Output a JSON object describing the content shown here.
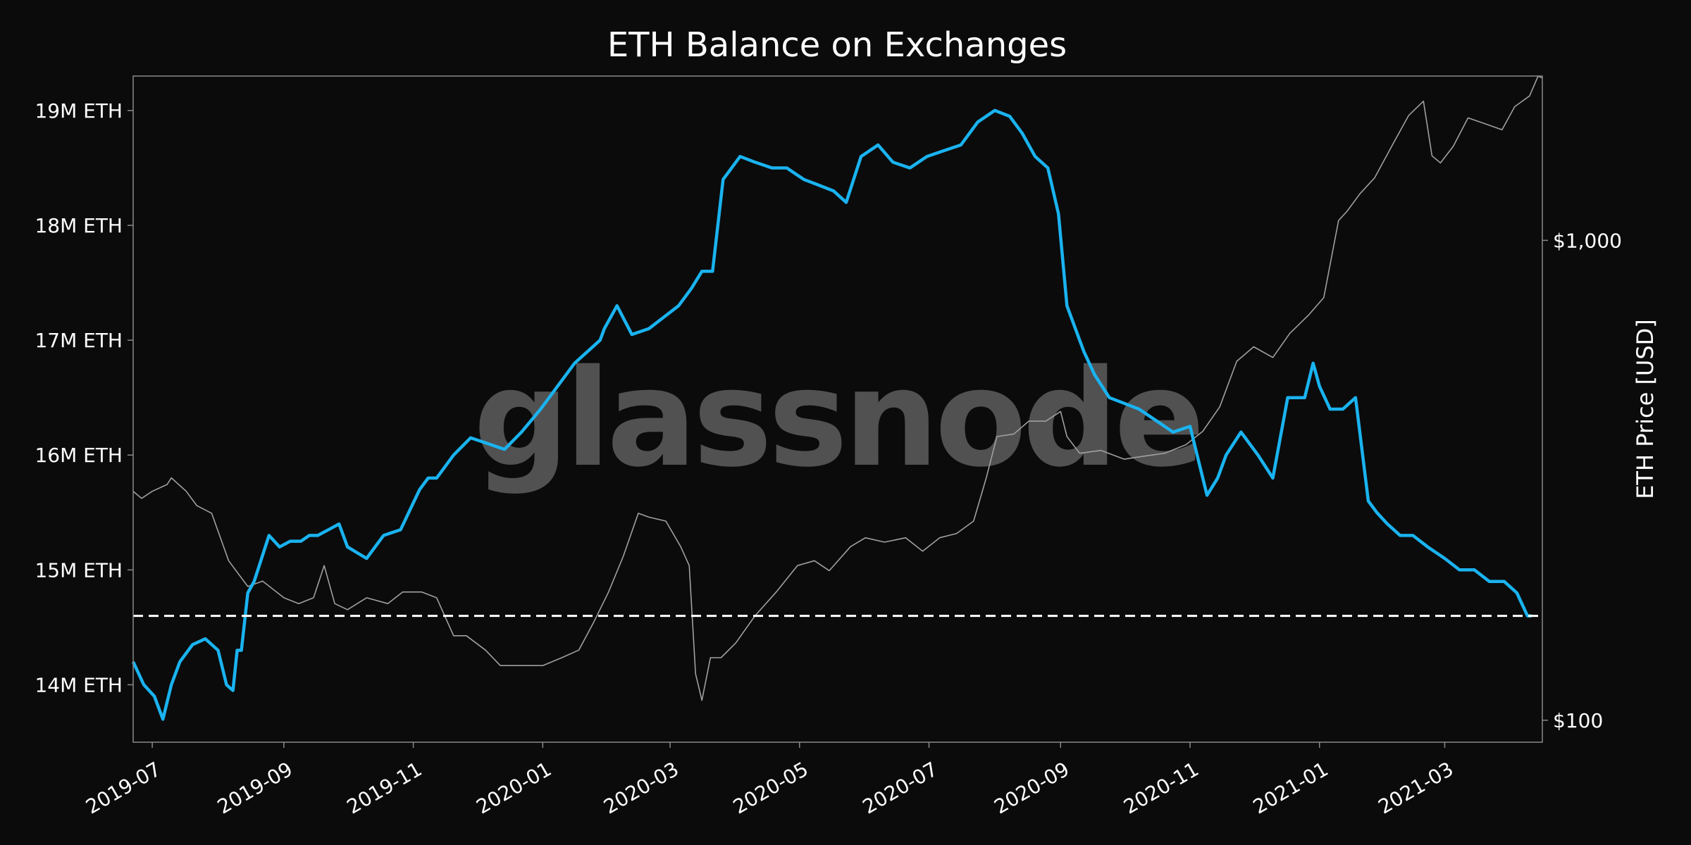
{
  "chart_data": {
    "type": "line",
    "title": "ETH Balance on Exchanges",
    "watermark": "glassnode",
    "ylabel_right": "ETH Price [USD]",
    "x_range": [
      "2019-06-22",
      "2021-04-16"
    ],
    "x_ticks": [
      "2019-07",
      "2019-09",
      "2019-11",
      "2020-01",
      "2020-03",
      "2020-05",
      "2020-07",
      "2020-09",
      "2020-11",
      "2021-01",
      "2021-03"
    ],
    "y_left": {
      "range": [
        13.5,
        19.3
      ],
      "unit": "M ETH",
      "ticks": [
        14,
        15,
        16,
        17,
        18,
        19
      ],
      "tick_labels": [
        "14M ETH",
        "15M ETH",
        "16M ETH",
        "17M ETH",
        "18M ETH",
        "19M ETH"
      ]
    },
    "y_right": {
      "scale": "log",
      "range": [
        90,
        2200
      ],
      "unit": "USD",
      "ticks": [
        100,
        1000
      ],
      "tick_labels": [
        "$100",
        "$1,000"
      ]
    },
    "reference_line": {
      "value": 14.6,
      "style": "dashed",
      "color": "#ffffff"
    },
    "grid": false,
    "series": [
      {
        "axis": "left",
        "color": "#1ab3f0",
        "x": [
          "2019-06-22",
          "2019-06-27",
          "2019-07-02",
          "2019-07-06",
          "2019-07-10",
          "2019-07-14",
          "2019-07-20",
          "2019-07-26",
          "2019-08-01",
          "2019-08-05",
          "2019-08-08",
          "2019-08-10",
          "2019-08-12",
          "2019-08-15",
          "2019-08-18",
          "2019-08-25",
          "2019-08-30",
          "2019-09-04",
          "2019-09-09",
          "2019-09-13",
          "2019-09-17",
          "2019-09-22",
          "2019-09-27",
          "2019-10-01",
          "2019-10-10",
          "2019-10-18",
          "2019-10-26",
          "2019-11-04",
          "2019-11-08",
          "2019-11-12",
          "2019-11-20",
          "2019-11-28",
          "2019-12-06",
          "2019-12-14",
          "2019-12-22",
          "2019-12-31",
          "2020-01-08",
          "2020-01-16",
          "2020-01-22",
          "2020-01-28",
          "2020-01-30",
          "2020-02-05",
          "2020-02-12",
          "2020-02-20",
          "2020-02-27",
          "2020-03-05",
          "2020-03-11",
          "2020-03-16",
          "2020-03-21",
          "2020-03-26",
          "2020-04-03",
          "2020-04-10",
          "2020-04-18",
          "2020-04-25",
          "2020-05-03",
          "2020-05-10",
          "2020-05-17",
          "2020-05-23",
          "2020-05-30",
          "2020-06-07",
          "2020-06-14",
          "2020-06-22",
          "2020-06-30",
          "2020-07-08",
          "2020-07-16",
          "2020-07-24",
          "2020-08-01",
          "2020-08-08",
          "2020-08-14",
          "2020-08-20",
          "2020-08-26",
          "2020-08-31",
          "2020-09-04",
          "2020-09-08",
          "2020-09-12",
          "2020-09-17",
          "2020-09-24",
          "2020-10-01",
          "2020-10-08",
          "2020-10-16",
          "2020-10-24",
          "2020-11-01",
          "2020-11-09",
          "2020-11-14",
          "2020-11-18",
          "2020-11-25",
          "2020-12-03",
          "2020-12-10",
          "2020-12-17",
          "2020-12-25",
          "2020-12-29",
          "2021-01-01",
          "2021-01-06",
          "2021-01-12",
          "2021-01-18",
          "2021-01-24",
          "2021-01-28",
          "2021-02-02",
          "2021-02-08",
          "2021-02-14",
          "2021-02-21",
          "2021-03-01",
          "2021-03-08",
          "2021-03-15",
          "2021-03-22",
          "2021-03-29",
          "2021-04-04",
          "2021-04-09",
          "2021-04-11"
        ],
        "values": [
          14.2,
          14.0,
          13.9,
          13.7,
          14.0,
          14.2,
          14.35,
          14.4,
          14.3,
          14.0,
          13.95,
          14.3,
          14.3,
          14.8,
          14.9,
          15.3,
          15.2,
          15.25,
          15.25,
          15.3,
          15.3,
          15.35,
          15.4,
          15.2,
          15.1,
          15.3,
          15.35,
          15.7,
          15.8,
          15.8,
          16.0,
          16.15,
          16.1,
          16.05,
          16.2,
          16.4,
          16.6,
          16.8,
          16.9,
          17.0,
          17.1,
          17.3,
          17.05,
          17.1,
          17.2,
          17.3,
          17.45,
          17.6,
          17.6,
          18.4,
          18.6,
          18.55,
          18.5,
          18.5,
          18.4,
          18.35,
          18.3,
          18.2,
          18.6,
          18.7,
          18.55,
          18.5,
          18.6,
          18.65,
          18.7,
          18.9,
          19.0,
          18.95,
          18.8,
          18.6,
          18.5,
          18.1,
          17.3,
          17.1,
          16.9,
          16.7,
          16.5,
          16.45,
          16.4,
          16.3,
          16.2,
          16.25,
          15.65,
          15.8,
          16.0,
          16.2,
          16.0,
          15.8,
          16.5,
          16.5,
          16.8,
          16.6,
          16.4,
          16.4,
          16.5,
          15.6,
          15.5,
          15.4,
          15.3,
          15.3,
          15.2,
          15.1,
          15.0,
          15.0,
          14.9,
          14.9,
          14.8,
          14.6,
          14.6
        ]
      },
      {
        "axis": "right",
        "color": "#a0a0a0",
        "x": [
          "2019-06-22",
          "2019-06-26",
          "2019-07-01",
          "2019-07-08",
          "2019-07-10",
          "2019-07-17",
          "2019-07-22",
          "2019-07-29",
          "2019-08-06",
          "2019-08-15",
          "2019-08-22",
          "2019-09-01",
          "2019-09-08",
          "2019-09-15",
          "2019-09-20",
          "2019-09-25",
          "2019-10-01",
          "2019-10-10",
          "2019-10-20",
          "2019-10-27",
          "2019-11-05",
          "2019-11-12",
          "2019-11-20",
          "2019-11-26",
          "2019-12-05",
          "2019-12-12",
          "2019-12-18",
          "2019-12-25",
          "2020-01-01",
          "2020-01-10",
          "2020-01-18",
          "2020-01-25",
          "2020-02-01",
          "2020-02-08",
          "2020-02-15",
          "2020-02-20",
          "2020-02-28",
          "2020-03-06",
          "2020-03-10",
          "2020-03-13",
          "2020-03-16",
          "2020-03-20",
          "2020-03-25",
          "2020-04-01",
          "2020-04-10",
          "2020-04-20",
          "2020-04-30",
          "2020-05-08",
          "2020-05-15",
          "2020-05-25",
          "2020-06-01",
          "2020-06-10",
          "2020-06-20",
          "2020-06-28",
          "2020-07-06",
          "2020-07-14",
          "2020-07-22",
          "2020-07-28",
          "2020-08-02",
          "2020-08-10",
          "2020-08-17",
          "2020-08-25",
          "2020-09-01",
          "2020-09-04",
          "2020-09-10",
          "2020-09-20",
          "2020-10-01",
          "2020-10-10",
          "2020-10-20",
          "2020-10-30",
          "2020-11-07",
          "2020-11-15",
          "2020-11-23",
          "2020-12-01",
          "2020-12-10",
          "2020-12-18",
          "2020-12-27",
          "2021-01-03",
          "2021-01-10",
          "2021-01-14",
          "2021-01-20",
          "2021-01-27",
          "2021-02-05",
          "2021-02-12",
          "2021-02-19",
          "2021-02-23",
          "2021-02-27",
          "2021-03-05",
          "2021-03-12",
          "2021-03-20",
          "2021-03-28",
          "2021-04-03",
          "2021-04-10",
          "2021-04-14",
          "2021-04-16"
        ],
        "values": [
          300,
          290,
          300,
          310,
          320,
          300,
          280,
          270,
          215,
          190,
          195,
          180,
          175,
          180,
          210,
          175,
          170,
          180,
          175,
          185,
          185,
          180,
          150,
          150,
          140,
          130,
          130,
          130,
          130,
          135,
          140,
          160,
          185,
          220,
          270,
          265,
          260,
          230,
          210,
          125,
          110,
          135,
          135,
          145,
          165,
          185,
          210,
          215,
          205,
          230,
          240,
          235,
          240,
          225,
          240,
          245,
          260,
          320,
          390,
          395,
          420,
          420,
          440,
          390,
          360,
          365,
          350,
          355,
          360,
          375,
          400,
          450,
          560,
          600,
          570,
          640,
          700,
          760,
          1100,
          1150,
          1250,
          1350,
          1600,
          1820,
          1950,
          1500,
          1450,
          1570,
          1800,
          1750,
          1700,
          1900,
          2000,
          2200,
          2180
        ]
      }
    ]
  }
}
